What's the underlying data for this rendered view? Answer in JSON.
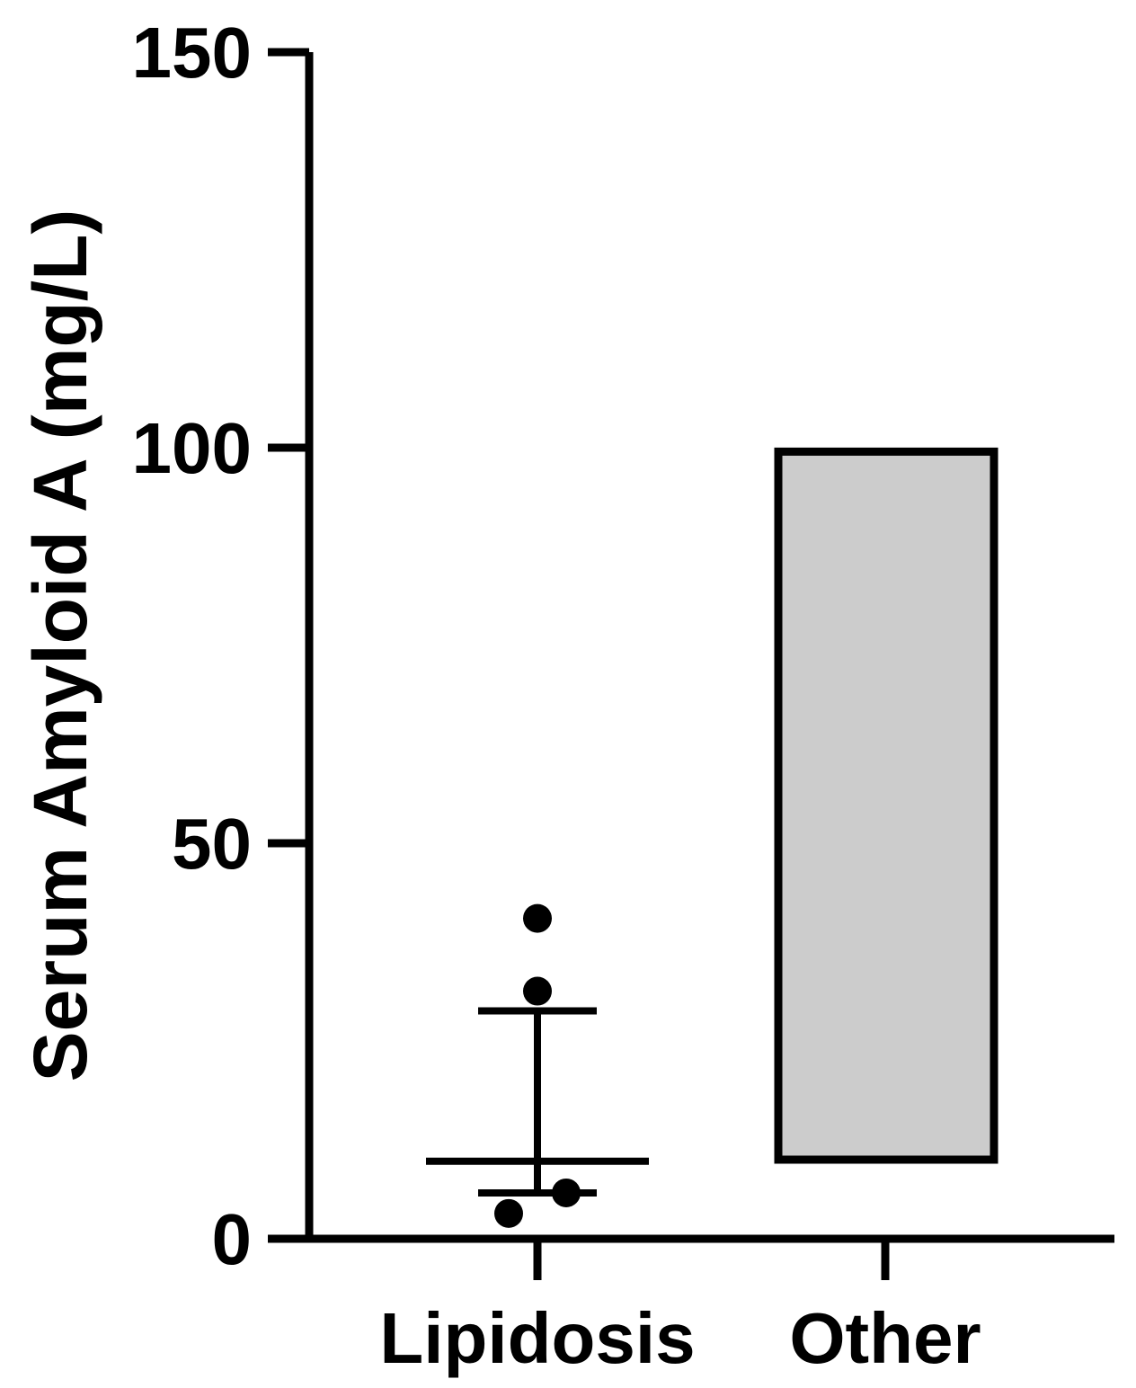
{
  "chart_data": {
    "type": "bar",
    "title": "",
    "xlabel": "",
    "ylabel": "Serum Amyloid A  (mg/L)",
    "ylim": [
      0,
      150
    ],
    "yticks": [
      "0",
      "50",
      "100",
      "150"
    ],
    "categories": [
      "Lipidosis",
      "Other"
    ],
    "lipidosis": {
      "points": [
        40.5,
        31.3,
        5.8,
        3.2
      ],
      "median": 9.8,
      "error_low": 5.8,
      "error_high": 28.8
    },
    "other": {
      "range_box": [
        10.0,
        99.5
      ]
    },
    "grid": false,
    "colors": {
      "axis": "#000000",
      "points": "#000000",
      "box_fill": "#cccccc",
      "box_stroke": "#000000"
    }
  }
}
